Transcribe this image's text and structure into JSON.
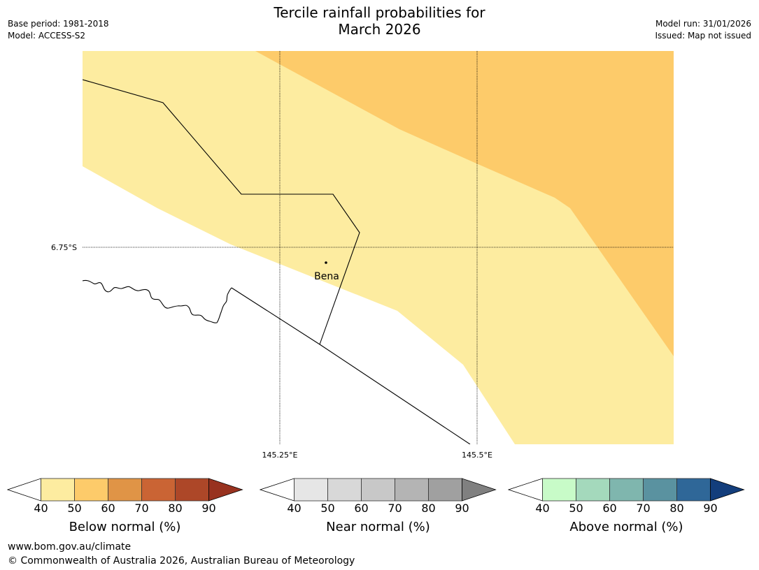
{
  "title": {
    "line1": "Tercile rainfall probabilities for",
    "line2": "March 2026"
  },
  "meta_left": {
    "base_period": "Base period: 1981-2018",
    "model": "Model: ACCESS-S2"
  },
  "meta_right": {
    "model_run": "Model run: 31/01/2026",
    "issued": "Issued: Map not issued"
  },
  "map": {
    "lat_label": "6.75°S",
    "lon_labels": [
      "145.25°E",
      "145.5°E"
    ],
    "place": "Bena",
    "categories": {
      "below_40_50": "#fdeca0",
      "below_50_60": "#fdcb6a"
    }
  },
  "colorbars": [
    {
      "title": "Below normal (%)",
      "ticks": [
        "40",
        "50",
        "60",
        "70",
        "80",
        "90"
      ],
      "colors": [
        "#ffffff",
        "#fdeca0",
        "#fdcb6a",
        "#e09446",
        "#ca6434",
        "#ad4728",
        "#98321f"
      ]
    },
    {
      "title": "Near normal (%)",
      "ticks": [
        "40",
        "50",
        "60",
        "70",
        "80",
        "90"
      ],
      "colors": [
        "#ffffff",
        "#e6e6e6",
        "#d8d8d8",
        "#c8c8c8",
        "#b4b4b4",
        "#a0a0a0",
        "#808080"
      ]
    },
    {
      "title": "Above normal (%)",
      "ticks": [
        "40",
        "50",
        "60",
        "70",
        "80",
        "90"
      ],
      "colors": [
        "#ffffff",
        "#c8fbc8",
        "#a4d9bc",
        "#7fb6ae",
        "#5a92a0",
        "#2f6798",
        "#133e7c"
      ]
    }
  ],
  "footer": {
    "url": "www.bom.gov.au/climate",
    "copyright": "© Commonwealth of Australia 2026, Australian Bureau of Meteorology"
  }
}
